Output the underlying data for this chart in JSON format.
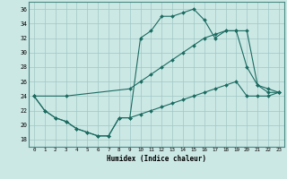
{
  "xlabel": "Humidex (Indice chaleur)",
  "xlim": [
    -0.5,
    23.5
  ],
  "ylim": [
    17,
    37
  ],
  "yticks": [
    18,
    20,
    22,
    24,
    26,
    28,
    30,
    32,
    34,
    36
  ],
  "xticks": [
    0,
    1,
    2,
    3,
    4,
    5,
    6,
    7,
    8,
    9,
    10,
    11,
    12,
    13,
    14,
    15,
    16,
    17,
    18,
    19,
    20,
    21,
    22,
    23
  ],
  "bg_color": "#cce8e5",
  "grid_color": "#9fc8c4",
  "line_color": "#1a6b60",
  "line1_x": [
    0,
    1,
    2,
    3,
    4,
    5,
    6,
    7,
    8,
    9,
    10,
    11,
    12,
    13,
    14,
    15,
    16,
    17,
    18,
    19,
    20,
    21,
    22,
    23
  ],
  "line1_y": [
    24,
    22,
    21,
    20.5,
    19.5,
    19,
    18.5,
    18.5,
    21,
    21,
    32,
    33,
    35,
    35,
    35.5,
    36,
    34.5,
    32,
    33,
    33,
    28,
    25.5,
    25,
    24.5
  ],
  "line2_x": [
    0,
    3,
    9,
    10,
    11,
    12,
    13,
    14,
    15,
    16,
    17,
    18,
    19,
    20,
    21,
    22,
    23
  ],
  "line2_y": [
    24,
    24,
    25,
    26,
    27,
    28,
    29,
    30,
    31,
    32,
    32.5,
    33,
    33,
    33,
    25.5,
    24.5,
    24.5
  ],
  "line3_x": [
    0,
    1,
    2,
    3,
    4,
    5,
    6,
    7,
    8,
    9,
    10,
    11,
    12,
    13,
    14,
    15,
    16,
    17,
    18,
    19,
    20,
    21,
    22,
    23
  ],
  "line3_y": [
    24,
    22,
    21,
    20.5,
    19.5,
    19,
    18.5,
    18.5,
    21,
    21,
    21.5,
    22,
    22.5,
    23,
    23.5,
    24,
    24.5,
    25,
    25.5,
    26,
    24,
    24,
    24,
    24.5
  ]
}
